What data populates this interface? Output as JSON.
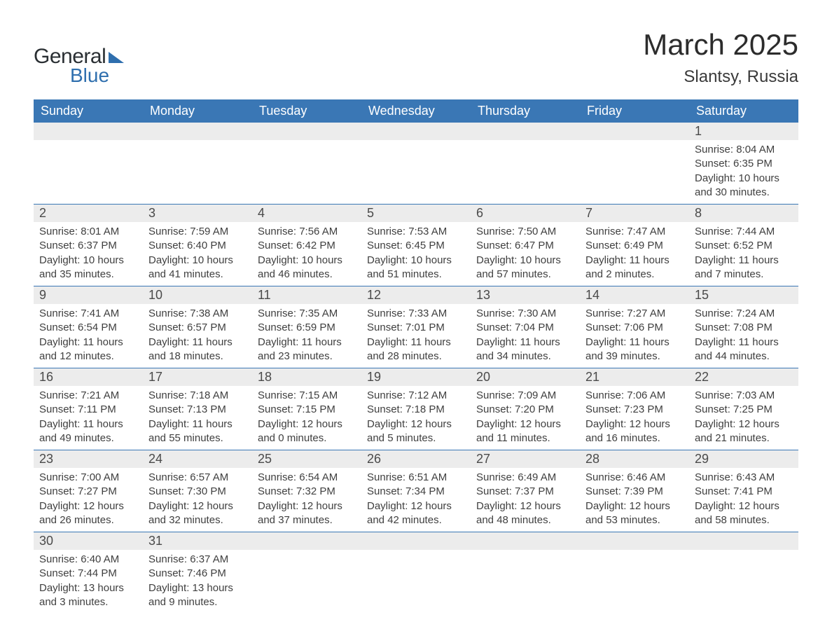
{
  "logo": {
    "text_general": "General",
    "text_blue": "Blue"
  },
  "title": {
    "month": "March 2025",
    "location": "Slantsy, Russia"
  },
  "colors": {
    "header_bg": "#3a77b5",
    "header_text": "#ffffff",
    "daynum_bg": "#ececec",
    "row_divider": "#3a77b5",
    "text": "#3a3a3a",
    "logo_blue": "#2f6fae",
    "background": "#ffffff"
  },
  "layout": {
    "type": "calendar-table",
    "columns": 7,
    "rows_of_weeks": 6,
    "font_family": "Arial",
    "title_fontsize_pt": 32,
    "location_fontsize_pt": 18,
    "header_fontsize_pt": 14,
    "daynum_fontsize_pt": 14,
    "detail_fontsize_pt": 11
  },
  "weekdays": [
    "Sunday",
    "Monday",
    "Tuesday",
    "Wednesday",
    "Thursday",
    "Friday",
    "Saturday"
  ],
  "weeks": [
    [
      null,
      null,
      null,
      null,
      null,
      null,
      {
        "n": "1",
        "sunrise": "Sunrise: 8:04 AM",
        "sunset": "Sunset: 6:35 PM",
        "day1": "Daylight: 10 hours",
        "day2": "and 30 minutes."
      }
    ],
    [
      {
        "n": "2",
        "sunrise": "Sunrise: 8:01 AM",
        "sunset": "Sunset: 6:37 PM",
        "day1": "Daylight: 10 hours",
        "day2": "and 35 minutes."
      },
      {
        "n": "3",
        "sunrise": "Sunrise: 7:59 AM",
        "sunset": "Sunset: 6:40 PM",
        "day1": "Daylight: 10 hours",
        "day2": "and 41 minutes."
      },
      {
        "n": "4",
        "sunrise": "Sunrise: 7:56 AM",
        "sunset": "Sunset: 6:42 PM",
        "day1": "Daylight: 10 hours",
        "day2": "and 46 minutes."
      },
      {
        "n": "5",
        "sunrise": "Sunrise: 7:53 AM",
        "sunset": "Sunset: 6:45 PM",
        "day1": "Daylight: 10 hours",
        "day2": "and 51 minutes."
      },
      {
        "n": "6",
        "sunrise": "Sunrise: 7:50 AM",
        "sunset": "Sunset: 6:47 PM",
        "day1": "Daylight: 10 hours",
        "day2": "and 57 minutes."
      },
      {
        "n": "7",
        "sunrise": "Sunrise: 7:47 AM",
        "sunset": "Sunset: 6:49 PM",
        "day1": "Daylight: 11 hours",
        "day2": "and 2 minutes."
      },
      {
        "n": "8",
        "sunrise": "Sunrise: 7:44 AM",
        "sunset": "Sunset: 6:52 PM",
        "day1": "Daylight: 11 hours",
        "day2": "and 7 minutes."
      }
    ],
    [
      {
        "n": "9",
        "sunrise": "Sunrise: 7:41 AM",
        "sunset": "Sunset: 6:54 PM",
        "day1": "Daylight: 11 hours",
        "day2": "and 12 minutes."
      },
      {
        "n": "10",
        "sunrise": "Sunrise: 7:38 AM",
        "sunset": "Sunset: 6:57 PM",
        "day1": "Daylight: 11 hours",
        "day2": "and 18 minutes."
      },
      {
        "n": "11",
        "sunrise": "Sunrise: 7:35 AM",
        "sunset": "Sunset: 6:59 PM",
        "day1": "Daylight: 11 hours",
        "day2": "and 23 minutes."
      },
      {
        "n": "12",
        "sunrise": "Sunrise: 7:33 AM",
        "sunset": "Sunset: 7:01 PM",
        "day1": "Daylight: 11 hours",
        "day2": "and 28 minutes."
      },
      {
        "n": "13",
        "sunrise": "Sunrise: 7:30 AM",
        "sunset": "Sunset: 7:04 PM",
        "day1": "Daylight: 11 hours",
        "day2": "and 34 minutes."
      },
      {
        "n": "14",
        "sunrise": "Sunrise: 7:27 AM",
        "sunset": "Sunset: 7:06 PM",
        "day1": "Daylight: 11 hours",
        "day2": "and 39 minutes."
      },
      {
        "n": "15",
        "sunrise": "Sunrise: 7:24 AM",
        "sunset": "Sunset: 7:08 PM",
        "day1": "Daylight: 11 hours",
        "day2": "and 44 minutes."
      }
    ],
    [
      {
        "n": "16",
        "sunrise": "Sunrise: 7:21 AM",
        "sunset": "Sunset: 7:11 PM",
        "day1": "Daylight: 11 hours",
        "day2": "and 49 minutes."
      },
      {
        "n": "17",
        "sunrise": "Sunrise: 7:18 AM",
        "sunset": "Sunset: 7:13 PM",
        "day1": "Daylight: 11 hours",
        "day2": "and 55 minutes."
      },
      {
        "n": "18",
        "sunrise": "Sunrise: 7:15 AM",
        "sunset": "Sunset: 7:15 PM",
        "day1": "Daylight: 12 hours",
        "day2": "and 0 minutes."
      },
      {
        "n": "19",
        "sunrise": "Sunrise: 7:12 AM",
        "sunset": "Sunset: 7:18 PM",
        "day1": "Daylight: 12 hours",
        "day2": "and 5 minutes."
      },
      {
        "n": "20",
        "sunrise": "Sunrise: 7:09 AM",
        "sunset": "Sunset: 7:20 PM",
        "day1": "Daylight: 12 hours",
        "day2": "and 11 minutes."
      },
      {
        "n": "21",
        "sunrise": "Sunrise: 7:06 AM",
        "sunset": "Sunset: 7:23 PM",
        "day1": "Daylight: 12 hours",
        "day2": "and 16 minutes."
      },
      {
        "n": "22",
        "sunrise": "Sunrise: 7:03 AM",
        "sunset": "Sunset: 7:25 PM",
        "day1": "Daylight: 12 hours",
        "day2": "and 21 minutes."
      }
    ],
    [
      {
        "n": "23",
        "sunrise": "Sunrise: 7:00 AM",
        "sunset": "Sunset: 7:27 PM",
        "day1": "Daylight: 12 hours",
        "day2": "and 26 minutes."
      },
      {
        "n": "24",
        "sunrise": "Sunrise: 6:57 AM",
        "sunset": "Sunset: 7:30 PM",
        "day1": "Daylight: 12 hours",
        "day2": "and 32 minutes."
      },
      {
        "n": "25",
        "sunrise": "Sunrise: 6:54 AM",
        "sunset": "Sunset: 7:32 PM",
        "day1": "Daylight: 12 hours",
        "day2": "and 37 minutes."
      },
      {
        "n": "26",
        "sunrise": "Sunrise: 6:51 AM",
        "sunset": "Sunset: 7:34 PM",
        "day1": "Daylight: 12 hours",
        "day2": "and 42 minutes."
      },
      {
        "n": "27",
        "sunrise": "Sunrise: 6:49 AM",
        "sunset": "Sunset: 7:37 PM",
        "day1": "Daylight: 12 hours",
        "day2": "and 48 minutes."
      },
      {
        "n": "28",
        "sunrise": "Sunrise: 6:46 AM",
        "sunset": "Sunset: 7:39 PM",
        "day1": "Daylight: 12 hours",
        "day2": "and 53 minutes."
      },
      {
        "n": "29",
        "sunrise": "Sunrise: 6:43 AM",
        "sunset": "Sunset: 7:41 PM",
        "day1": "Daylight: 12 hours",
        "day2": "and 58 minutes."
      }
    ],
    [
      {
        "n": "30",
        "sunrise": "Sunrise: 6:40 AM",
        "sunset": "Sunset: 7:44 PM",
        "day1": "Daylight: 13 hours",
        "day2": "and 3 minutes."
      },
      {
        "n": "31",
        "sunrise": "Sunrise: 6:37 AM",
        "sunset": "Sunset: 7:46 PM",
        "day1": "Daylight: 13 hours",
        "day2": "and 9 minutes."
      },
      null,
      null,
      null,
      null,
      null
    ]
  ]
}
